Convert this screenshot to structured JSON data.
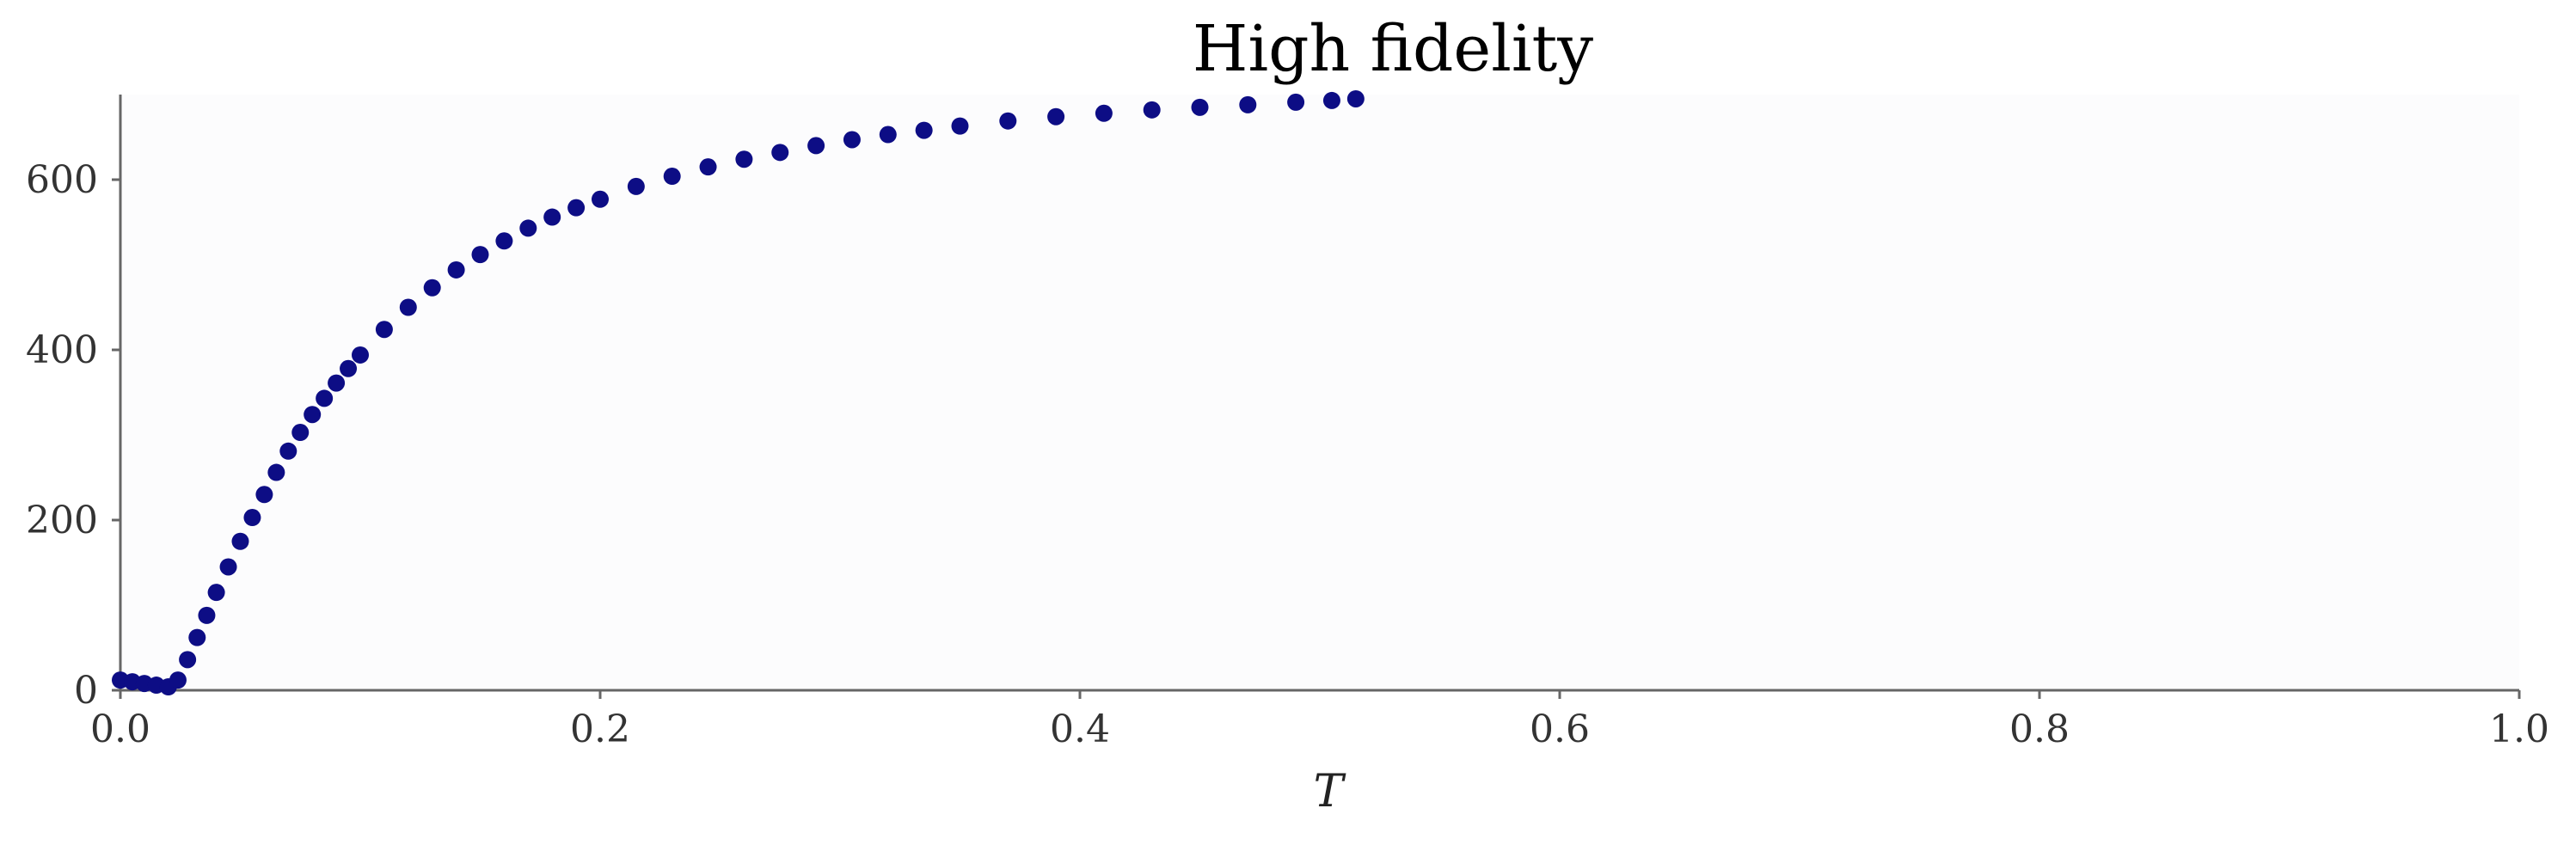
{
  "chart_data": {
    "type": "scatter",
    "title": "High fidelity",
    "xlabel": "T",
    "ylabel": "",
    "xlim": [
      0.0,
      1.0
    ],
    "ylim": [
      0,
      700
    ],
    "xticks": [
      0.0,
      0.2,
      0.4,
      0.6,
      0.8,
      1.0
    ],
    "xtick_labels": [
      "0.0",
      "0.2",
      "0.4",
      "0.6",
      "0.8",
      "1.0"
    ],
    "yticks": [
      0,
      200,
      400,
      600
    ],
    "ytick_labels": [
      "0",
      "200",
      "400",
      "600"
    ],
    "grid": false,
    "marker_color": "#0d0d85",
    "plot_background": "#fcfcfd",
    "axis_color": "#666666",
    "series": [
      {
        "values_x": [
          0.0,
          0.005,
          0.01,
          0.015,
          0.02,
          0.024,
          0.028,
          0.032,
          0.036,
          0.04,
          0.045,
          0.05,
          0.055,
          0.06,
          0.065,
          0.07,
          0.075,
          0.08,
          0.085,
          0.09,
          0.095,
          0.1,
          0.11,
          0.12,
          0.13,
          0.14,
          0.15,
          0.16,
          0.17,
          0.18,
          0.19,
          0.2,
          0.215,
          0.23,
          0.245,
          0.26,
          0.275,
          0.29,
          0.305,
          0.32,
          0.335,
          0.35,
          0.37,
          0.39,
          0.41,
          0.43,
          0.45,
          0.47,
          0.49,
          0.505,
          0.515
        ],
        "values_y": [
          12,
          10,
          8,
          6,
          4,
          12,
          36,
          62,
          88,
          115,
          145,
          175,
          203,
          230,
          256,
          281,
          303,
          324,
          343,
          361,
          378,
          394,
          424,
          450,
          473,
          494,
          512,
          528,
          543,
          556,
          567,
          577,
          592,
          604,
          615,
          624,
          632,
          640,
          647,
          653,
          658,
          663,
          669,
          674,
          678,
          682,
          685,
          688,
          691,
          693,
          695
        ]
      }
    ]
  }
}
